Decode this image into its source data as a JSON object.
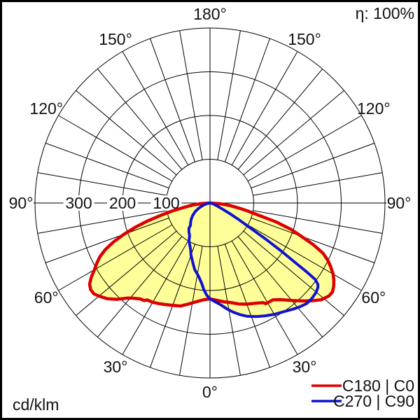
{
  "header": {
    "efficiency_label": "η: 100%"
  },
  "footer": {
    "unit_label": "cd/klm"
  },
  "legend": [
    {
      "label": "C180 | C0",
      "color": "#dd0000"
    },
    {
      "label": "C270 | C90",
      "color": "#1212cf"
    }
  ],
  "chart_data": {
    "type": "line",
    "subtype": "polar-intensity-distribution",
    "units": "cd/klm",
    "angle_zero": "bottom",
    "grid": {
      "circle_values": [
        100,
        200,
        300,
        400
      ],
      "spoke_step_deg": 10,
      "spoke_inner_value": 100,
      "grid_on": true
    },
    "radial_axis": {
      "min": 0,
      "max": 400,
      "ticks": [
        {
          "text": "300",
          "value": 300
        },
        {
          "text": "200",
          "value": 200
        },
        {
          "text": "100",
          "value": 100
        }
      ]
    },
    "angle_labels": [
      {
        "text": "0°",
        "deg": 0
      },
      {
        "text": "30°",
        "deg": 30
      },
      {
        "text": "30°",
        "deg": -30
      },
      {
        "text": "60°",
        "deg": 60
      },
      {
        "text": "60°",
        "deg": -60
      },
      {
        "text": "90°",
        "deg": 90
      },
      {
        "text": "90°",
        "deg": -90
      },
      {
        "text": "120°",
        "deg": 120
      },
      {
        "text": "120°",
        "deg": -120
      },
      {
        "text": "150°",
        "deg": 150
      },
      {
        "text": "150°",
        "deg": -150
      },
      {
        "text": "180°",
        "deg": 180
      }
    ],
    "fill_color": "#ffff99",
    "legend_position": "bottom-right",
    "series": [
      {
        "name": "C180 | C0",
        "color": "#dd0000",
        "stroke_width": 4.5,
        "points": [
          [
            -90,
            0
          ],
          [
            -86,
            20
          ],
          [
            -83,
            42
          ],
          [
            -80,
            65
          ],
          [
            -78,
            88
          ],
          [
            -76,
            115
          ],
          [
            -74,
            148
          ],
          [
            -72,
            180
          ],
          [
            -70,
            210
          ],
          [
            -68,
            238
          ],
          [
            -66,
            262
          ],
          [
            -64,
            280
          ],
          [
            -62,
            293
          ],
          [
            -60,
            305
          ],
          [
            -58,
            320
          ],
          [
            -56,
            332
          ],
          [
            -54,
            337
          ],
          [
            -52,
            337
          ],
          [
            -50,
            331
          ],
          [
            -47,
            321
          ],
          [
            -44,
            306
          ],
          [
            -41,
            288
          ],
          [
            -39,
            280
          ],
          [
            -36,
            271
          ],
          [
            -34,
            269
          ],
          [
            -33,
            264
          ],
          [
            -30,
            262
          ],
          [
            -27,
            258
          ],
          [
            -24,
            254
          ],
          [
            -20,
            249
          ],
          [
            -16,
            245
          ],
          [
            -12,
            236
          ],
          [
            -8,
            228
          ],
          [
            -4,
            222
          ],
          [
            0,
            219
          ],
          [
            4,
            223
          ],
          [
            8,
            228
          ],
          [
            12,
            233
          ],
          [
            16,
            240
          ],
          [
            20,
            246
          ],
          [
            24,
            251
          ],
          [
            28,
            258
          ],
          [
            29,
            263
          ],
          [
            33,
            264
          ],
          [
            36,
            273
          ],
          [
            40,
            291
          ],
          [
            43,
            306
          ],
          [
            46,
            322
          ],
          [
            49,
            337
          ],
          [
            52,
            345
          ],
          [
            54,
            346
          ],
          [
            56,
            341
          ],
          [
            58,
            334
          ],
          [
            60,
            325
          ],
          [
            62,
            313
          ],
          [
            64,
            300
          ],
          [
            66,
            283
          ],
          [
            68,
            255
          ],
          [
            70,
            222
          ],
          [
            72,
            195
          ],
          [
            74,
            158
          ],
          [
            76,
            112
          ],
          [
            78,
            88
          ],
          [
            80,
            68
          ],
          [
            83,
            45
          ],
          [
            86,
            22
          ],
          [
            90,
            0
          ]
        ]
      },
      {
        "name": "C270 | C90",
        "color": "#1212cf",
        "stroke_width": 4,
        "points": [
          [
            -90,
            0
          ],
          [
            -80,
            6
          ],
          [
            -72,
            16
          ],
          [
            -66,
            27
          ],
          [
            -60,
            39
          ],
          [
            -54,
            49
          ],
          [
            -49,
            57
          ],
          [
            -44,
            64
          ],
          [
            -41,
            68
          ],
          [
            -40,
            75
          ],
          [
            -36,
            82
          ],
          [
            -32,
            88
          ],
          [
            -29,
            99
          ],
          [
            -26,
            106
          ],
          [
            -23,
            114
          ],
          [
            -20,
            127
          ],
          [
            -16,
            142
          ],
          [
            -13,
            156
          ],
          [
            -9,
            169
          ],
          [
            -6,
            184
          ],
          [
            -4,
            199
          ],
          [
            -2,
            211
          ],
          [
            0,
            219
          ],
          [
            3,
            226
          ],
          [
            6,
            234
          ],
          [
            9,
            245
          ],
          [
            12,
            255
          ],
          [
            15,
            264
          ],
          [
            18,
            272
          ],
          [
            22,
            280
          ],
          [
            26,
            287
          ],
          [
            30,
            294
          ],
          [
            34,
            300
          ],
          [
            38,
            308
          ],
          [
            41,
            314
          ],
          [
            44,
            319
          ],
          [
            47,
            319
          ],
          [
            50,
            317
          ],
          [
            52,
            313
          ],
          [
            53,
            309
          ],
          [
            54,
            297
          ],
          [
            54.5,
            273
          ],
          [
            55,
            240
          ],
          [
            56,
            196
          ],
          [
            57,
            155
          ],
          [
            58,
            115
          ],
          [
            59,
            92
          ],
          [
            60,
            75
          ],
          [
            62,
            50
          ],
          [
            64,
            32
          ],
          [
            67,
            18
          ],
          [
            72,
            9
          ],
          [
            80,
            3
          ],
          [
            90,
            0
          ]
        ]
      }
    ]
  }
}
